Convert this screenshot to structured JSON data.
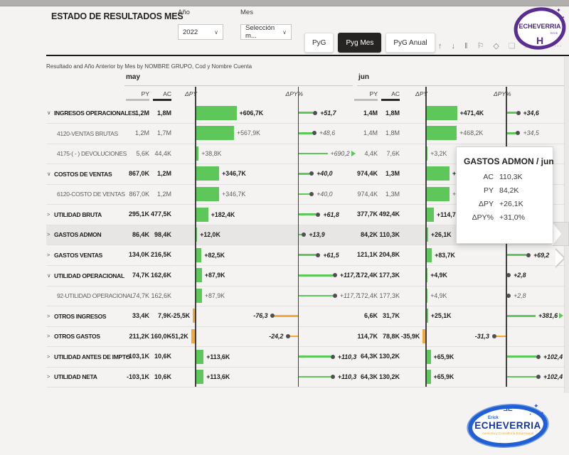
{
  "header": {
    "title": "ESTADO DE RESULTADOS MES",
    "year_label": "Año",
    "year_value": "2022",
    "month_label": "Mes",
    "month_value": "Selección m...",
    "tabs": [
      {
        "label": "PyG",
        "active": false
      },
      {
        "label": "Pyg Mes",
        "active": true
      },
      {
        "label": "PyG Anual",
        "active": false
      }
    ],
    "toolbar_icons": [
      {
        "name": "drill-up-icon",
        "glyph": "↑",
        "dim": false
      },
      {
        "name": "drill-down-icon",
        "glyph": "↓",
        "dim": false
      },
      {
        "name": "pause-icon",
        "glyph": "‖",
        "dim": false
      },
      {
        "name": "pin-icon",
        "glyph": "⚐",
        "dim": false
      },
      {
        "name": "eraser-icon",
        "glyph": "◇",
        "dim": false
      },
      {
        "name": "focus-mode-icon",
        "glyph": "❏",
        "dim": true
      },
      {
        "name": "filter-lines-icon",
        "glyph": "≡",
        "dim": true
      },
      {
        "name": "powerbi-icon",
        "glyph": "bi",
        "dim": true
      },
      {
        "name": "more-options-icon",
        "glyph": "⋯",
        "dim": true
      }
    ]
  },
  "subtitle": "Resultado and Año Anterior by Mes by NOMBRE GRUPO, Cod y Nombre Cuenta",
  "matrix": {
    "months": [
      "may",
      "jun"
    ],
    "columns": [
      "PY",
      "AC",
      "ΔPY",
      "ΔPY%"
    ],
    "rows": [
      {
        "label": "INGRESOS OPERACIONALES",
        "exp": "open",
        "bold": true,
        "highlight": false,
        "may": {
          "py": "1,2M",
          "ac": "1,8M",
          "dpy": "+606,7K",
          "dpyV": 606.7,
          "dpyp": "+51,7",
          "dpypV": 51.7,
          "arrow": false
        },
        "jun": {
          "py": "1,4M",
          "ac": "1,8M",
          "dpy": "+471,4K",
          "dpyV": 471.4,
          "dpyp": "+34,6",
          "dpypV": 34.6,
          "arrow": false
        }
      },
      {
        "label": "4120-VENTAS BRUTAS",
        "exp": null,
        "bold": false,
        "highlight": false,
        "may": {
          "py": "1,2M",
          "ac": "1,7M",
          "dpy": "+567,9K",
          "dpyV": 567.9,
          "dpyp": "+48,6",
          "dpypV": 48.6,
          "arrow": false
        },
        "jun": {
          "py": "1,4M",
          "ac": "1,8M",
          "dpy": "+468,2K",
          "dpyV": 468.2,
          "dpyp": "+34,5",
          "dpypV": 34.5,
          "arrow": false
        }
      },
      {
        "label": "4175-( - ) DEVOLUCIONES",
        "exp": null,
        "bold": false,
        "highlight": false,
        "may": {
          "py": "5,6K",
          "ac": "44,4K",
          "dpy": "+38,8K",
          "dpyV": 38.8,
          "dpyp": "+690,2",
          "dpypV": 690.2,
          "arrow": true
        },
        "jun": {
          "py": "4,4K",
          "ac": "7,6K",
          "dpy": "+3,2K",
          "dpyV": 3.2,
          "dpyp": null,
          "dpypV": null,
          "arrow": false
        }
      },
      {
        "label": "COSTOS DE VENTAS",
        "exp": "open",
        "bold": true,
        "highlight": false,
        "may": {
          "py": "867,0K",
          "ac": "1,2M",
          "dpy": "+346,7K",
          "dpyV": 346.7,
          "dpyp": "+40,0",
          "dpypV": 40.0,
          "arrow": false
        },
        "jun": {
          "py": "974,4K",
          "ac": "1,3M",
          "dpy": "+355,2K",
          "dpyV": 355.2,
          "dpyp": null,
          "dpypV": null,
          "arrow": false
        }
      },
      {
        "label": "6120-COSTO DE VENTAS",
        "exp": null,
        "bold": false,
        "highlight": false,
        "may": {
          "py": "867,0K",
          "ac": "1,2M",
          "dpy": "+346,7K",
          "dpyV": 346.7,
          "dpyp": "+40,0",
          "dpypV": 40.0,
          "arrow": false
        },
        "jun": {
          "py": "974,4K",
          "ac": "1,3M",
          "dpy": "+355,2K",
          "dpyV": 355.2,
          "dpyp": null,
          "dpypV": null,
          "arrow": false
        }
      },
      {
        "label": "UTILIDAD BRUTA",
        "exp": "closed",
        "bold": true,
        "highlight": false,
        "may": {
          "py": "295,1K",
          "ac": "477,5K",
          "dpy": "+182,4K",
          "dpyV": 182.4,
          "dpyp": "+61,8",
          "dpypV": 61.8,
          "arrow": false
        },
        "jun": {
          "py": "377,7K",
          "ac": "492,4K",
          "dpy": "+114,7K",
          "dpyV": 114.7,
          "dpyp": null,
          "dpypV": null,
          "arrow": false
        }
      },
      {
        "label": "GASTOS ADMON",
        "exp": "closed",
        "bold": true,
        "highlight": true,
        "may": {
          "py": "86,4K",
          "ac": "98,4K",
          "dpy": "+12,0K",
          "dpyV": 12.0,
          "dpyp": "+13,9",
          "dpypV": 13.9,
          "arrow": false
        },
        "jun": {
          "py": "84,2K",
          "ac": "110,3K",
          "dpy": "+26,1K",
          "dpyV": 26.1,
          "dpyp": null,
          "dpypV": null,
          "arrow": false
        }
      },
      {
        "label": "GASTOS VENTAS",
        "exp": "closed",
        "bold": true,
        "highlight": false,
        "may": {
          "py": "134,0K",
          "ac": "216,5K",
          "dpy": "+82,5K",
          "dpyV": 82.5,
          "dpyp": "+61,5",
          "dpypV": 61.5,
          "arrow": false
        },
        "jun": {
          "py": "121,1K",
          "ac": "204,8K",
          "dpy": "+83,7K",
          "dpyV": 83.7,
          "dpyp": "+69,2",
          "dpypV": 69.2,
          "arrow": false
        }
      },
      {
        "label": "UTILIDAD OPERACIONAL",
        "exp": "open",
        "bold": true,
        "highlight": false,
        "may": {
          "py": "74,7K",
          "ac": "162,6K",
          "dpy": "+87,9K",
          "dpyV": 87.9,
          "dpyp": "+117,7",
          "dpypV": 117.7,
          "arrow": false
        },
        "jun": {
          "py": "172,4K",
          "ac": "177,3K",
          "dpy": "+4,9K",
          "dpyV": 4.9,
          "dpyp": "+2,8",
          "dpypV": 2.8,
          "arrow": false
        }
      },
      {
        "label": "92-UTILIDAD OPERACIONAL",
        "exp": null,
        "bold": false,
        "highlight": false,
        "may": {
          "py": "74,7K",
          "ac": "162,6K",
          "dpy": "+87,9K",
          "dpyV": 87.9,
          "dpyp": "+117,7",
          "dpypV": 117.7,
          "arrow": false
        },
        "jun": {
          "py": "172,4K",
          "ac": "177,3K",
          "dpy": "+4,9K",
          "dpyV": 4.9,
          "dpyp": "+2,8",
          "dpypV": 2.8,
          "arrow": false
        }
      },
      {
        "label": "OTROS INGRESOS",
        "exp": "closed",
        "bold": true,
        "highlight": false,
        "may": {
          "py": "33,4K",
          "ac": "7,9K",
          "dpy": "-25,5K",
          "dpyV": -25.5,
          "dpyp": "-76,3",
          "dpypV": -76.3,
          "arrow": false
        },
        "jun": {
          "py": "6,6K",
          "ac": "31,7K",
          "dpy": "+25,1K",
          "dpyV": 25.1,
          "dpyp": "+381,6",
          "dpypV": 381.6,
          "arrow": true
        }
      },
      {
        "label": "OTROS GASTOS",
        "exp": "closed",
        "bold": true,
        "highlight": false,
        "may": {
          "py": "211,2K",
          "ac": "160,0K",
          "dpy": "-51,2K",
          "dpyV": -51.2,
          "dpyp": "-24,2",
          "dpypV": -24.2,
          "arrow": false
        },
        "jun": {
          "py": "114,7K",
          "ac": "78,8K",
          "dpy": "-35,9K",
          "dpyV": -35.9,
          "dpyp": "-31,3",
          "dpypV": -31.3,
          "arrow": false
        }
      },
      {
        "label": "UTILIDAD ANTES DE IMPTO",
        "exp": "closed",
        "bold": true,
        "highlight": false,
        "may": {
          "py": "-103,1K",
          "ac": "10,6K",
          "dpy": "+113,6K",
          "dpyV": 113.6,
          "dpyp": "+110,3",
          "dpypV": 110.3,
          "arrow": false
        },
        "jun": {
          "py": "64,3K",
          "ac": "130,2K",
          "dpy": "+65,9K",
          "dpyV": 65.9,
          "dpyp": "+102,4",
          "dpypV": 102.4,
          "arrow": false
        }
      },
      {
        "label": "UTILIDAD NETA",
        "exp": "closed",
        "bold": true,
        "highlight": false,
        "may": {
          "py": "-103,1K",
          "ac": "10,6K",
          "dpy": "+113,6K",
          "dpyV": 113.6,
          "dpyp": "+110,3",
          "dpypV": 110.3,
          "arrow": false
        },
        "jun": {
          "py": "64,3K",
          "ac": "130,2K",
          "dpy": "+65,9K",
          "dpyV": 65.9,
          "dpyp": "+102,4",
          "dpypV": 102.4,
          "arrow": false
        }
      }
    ]
  },
  "tooltip": {
    "title": "GASTOS ADMON / jun",
    "rows": [
      {
        "label": "AC",
        "value": "110,3K"
      },
      {
        "label": "PY",
        "value": "84,2K"
      },
      {
        "label": "ΔPY",
        "value": "+26,1K"
      },
      {
        "label": "ΔPY%",
        "value": "+31,0%"
      }
    ]
  },
  "logos": {
    "top": {
      "brand": "ECHEVERRIA",
      "name": "Erick",
      "monogram": "H"
    },
    "bottom": {
      "brand": "ECHEVERRIA",
      "name": "Erick",
      "monogram": "ƎE",
      "tagline": "Asesoría y Consultoría Empresarial"
    }
  },
  "colors": {
    "positive": "#5ec75a",
    "negative": "#f6a833",
    "axis": "#3f3f3f",
    "active_tab": "#252423",
    "highlight_row": "#e7e6e5",
    "logo_purple": "#5a2d91",
    "logo_blue": "#1d54c9",
    "tagline_orange": "#f0a232"
  }
}
